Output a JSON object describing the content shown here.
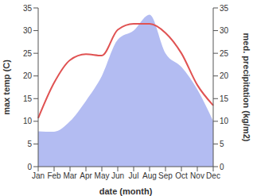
{
  "chart_data": {
    "type": "line",
    "x_label": "date (month)",
    "y_label": "max temp (C)",
    "y2_label": "med. precipitation (kg/m2)",
    "categories": [
      "Jan",
      "Feb",
      "Mar",
      "Apr",
      "May",
      "Jun",
      "Jul",
      "Aug",
      "Sep",
      "Oct",
      "Nov",
      "Dec"
    ],
    "series": [
      {
        "type": "area",
        "axis": "y2",
        "color": "#b3bcf2",
        "values": [
          7.8,
          7.7,
          10,
          14.5,
          20,
          28,
          30,
          33.5,
          25,
          22,
          17,
          10
        ]
      },
      {
        "type": "line",
        "axis": "y",
        "color": "#e05252",
        "values": [
          10.7,
          18.5,
          23.5,
          24.8,
          24.5,
          30.2,
          31.5,
          31.5,
          29.5,
          25,
          18,
          13.5
        ]
      }
    ],
    "ylim": [
      0,
      35
    ],
    "yticks": [
      0,
      5,
      10,
      15,
      20,
      25,
      30,
      35
    ],
    "y2lim": [
      0,
      35
    ],
    "y2ticks": [
      0,
      5,
      10,
      15,
      20,
      25,
      30,
      35
    ],
    "grid": false
  }
}
